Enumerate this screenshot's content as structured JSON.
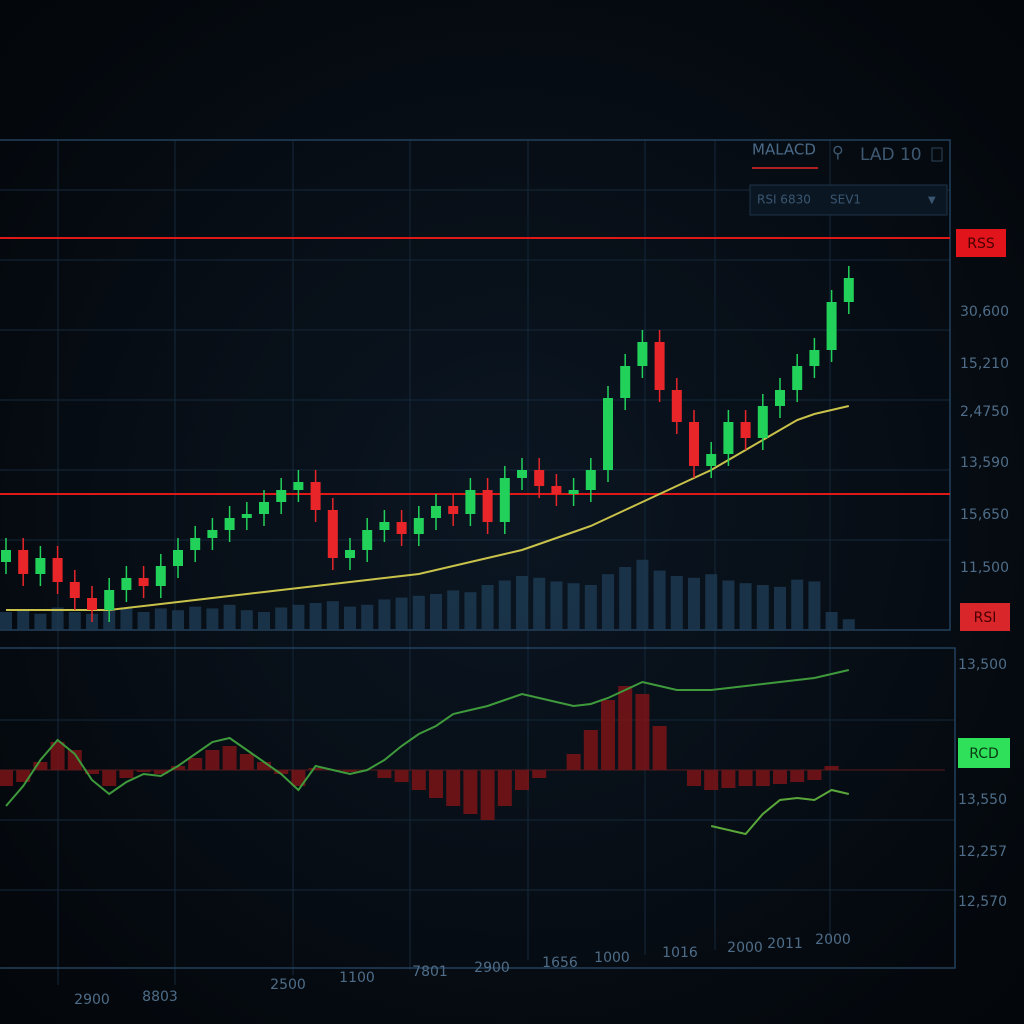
{
  "header": {
    "tabs": [
      "MALACD",
      "LAD 10"
    ],
    "dropdown": [
      "RSI 6830",
      "SEV1"
    ]
  },
  "chart_data": [
    {
      "type": "candlestick",
      "open": [
        17,
        20,
        14,
        18,
        12,
        8,
        5,
        10,
        13,
        11,
        16,
        20,
        23,
        25,
        28,
        29,
        32,
        35,
        37,
        30,
        18,
        20,
        25,
        27,
        24,
        28,
        31,
        29,
        35,
        27,
        38,
        40,
        36,
        34,
        35,
        40,
        58,
        66,
        72,
        60,
        52,
        41,
        44,
        52,
        48,
        56,
        60,
        66,
        70,
        82
      ],
      "high": [
        23,
        23,
        21,
        21,
        15,
        11,
        13,
        16,
        16,
        19,
        23,
        26,
        28,
        31,
        32,
        35,
        38,
        40,
        40,
        33,
        23,
        28,
        30,
        30,
        31,
        34,
        34,
        38,
        38,
        41,
        43,
        43,
        39,
        38,
        43,
        61,
        69,
        75,
        75,
        63,
        55,
        47,
        55,
        55,
        59,
        63,
        69,
        73,
        85,
        91
      ],
      "low": [
        14,
        11,
        11,
        9,
        5,
        2,
        2,
        7,
        8,
        8,
        13,
        17,
        20,
        22,
        25,
        26,
        29,
        32,
        27,
        15,
        15,
        17,
        22,
        21,
        21,
        25,
        26,
        26,
        24,
        24,
        35,
        33,
        31,
        31,
        32,
        37,
        55,
        63,
        57,
        49,
        38,
        38,
        41,
        45,
        45,
        53,
        57,
        63,
        67,
        79
      ],
      "close": [
        20,
        14,
        18,
        12,
        8,
        5,
        10,
        13,
        11,
        16,
        20,
        23,
        25,
        28,
        29,
        32,
        35,
        37,
        30,
        18,
        20,
        25,
        27,
        24,
        28,
        31,
        29,
        35,
        27,
        38,
        40,
        36,
        34,
        35,
        40,
        58,
        66,
        72,
        60,
        52,
        41,
        44,
        52,
        48,
        56,
        60,
        66,
        70,
        82,
        88
      ],
      "volume": [
        20,
        22,
        18,
        25,
        20,
        18,
        22,
        25,
        20,
        24,
        22,
        26,
        24,
        28,
        22,
        20,
        25,
        28,
        30,
        32,
        26,
        28,
        34,
        36,
        38,
        40,
        44,
        42,
        50,
        55,
        60,
        58,
        54,
        52,
        50,
        62,
        70,
        78,
        66,
        60,
        58,
        62,
        55,
        52,
        50,
        48,
        56,
        54,
        20,
        12
      ],
      "ma": [
        5,
        5,
        5,
        5,
        5,
        5,
        5,
        5.5,
        6,
        6.5,
        7,
        7.5,
        8,
        8.5,
        9,
        9.5,
        10,
        10.5,
        11,
        11.5,
        12,
        12.5,
        13,
        13.5,
        14,
        15,
        16,
        17,
        18,
        19,
        20,
        21.5,
        23,
        24.5,
        26,
        28,
        30,
        32,
        34,
        36,
        38,
        40,
        42.5,
        45,
        47.5,
        50,
        52.5,
        54,
        55,
        56
      ],
      "hlines": [
        98,
        34
      ],
      "ylim": [
        0,
        100
      ],
      "up_color": "#22d15a",
      "down_color": "#e8262a",
      "ma_color": "#c9c24a",
      "hline_color": "#e01818",
      "volume_color": "#1c3850",
      "y_labels": [
        "30,600",
        "15,210",
        "2,4750",
        "13,590",
        "15,650",
        "11,500"
      ],
      "tags": [
        "RSS",
        "RSI"
      ]
    },
    {
      "type": "macd",
      "histogram": [
        -8,
        -6,
        4,
        14,
        10,
        -2,
        -8,
        -4,
        -1,
        -2,
        2,
        6,
        10,
        12,
        8,
        4,
        -2,
        -8,
        1,
        0,
        -1,
        0,
        -4,
        -6,
        -10,
        -14,
        -18,
        -22,
        -25,
        -18,
        -10,
        -4,
        0,
        8,
        20,
        35,
        42,
        38,
        22,
        0,
        -8,
        -10,
        -9,
        -8,
        -8,
        -7,
        -6,
        -5,
        2,
        0
      ],
      "series": [
        {
          "color": "#3f9a3c",
          "values": [
            -18,
            -8,
            5,
            15,
            8,
            -5,
            -12,
            -6,
            -2,
            -3,
            2,
            8,
            14,
            16,
            10,
            4,
            -2,
            -10,
            2,
            0,
            -2,
            0,
            5,
            12,
            18,
            22,
            28,
            30,
            32,
            35,
            38,
            36,
            34,
            32,
            33,
            36,
            40,
            44,
            42,
            40,
            40,
            40,
            41,
            42,
            43,
            44,
            45,
            46,
            48,
            50
          ]
        },
        {
          "color": "#5aa83a",
          "values": [
            null,
            null,
            null,
            null,
            null,
            null,
            null,
            null,
            null,
            null,
            null,
            null,
            null,
            null,
            null,
            null,
            null,
            null,
            null,
            null,
            null,
            null,
            null,
            null,
            null,
            null,
            null,
            null,
            null,
            null,
            null,
            null,
            null,
            null,
            null,
            null,
            null,
            null,
            null,
            null,
            null,
            -28,
            -30,
            -32,
            -22,
            -15,
            -14,
            -15,
            -10,
            -12
          ]
        }
      ],
      "ylim": [
        -50,
        50
      ],
      "hist_color": "#7a1418",
      "y_labels": [
        "13,500",
        "13,550",
        "12,257",
        "12,570"
      ],
      "tags": [
        "RCD"
      ],
      "x_labels": [
        "2900",
        "8803",
        "2500",
        "1100",
        "7801",
        "2900",
        "1656",
        "1000",
        "1016",
        "2000",
        "2011",
        "2000"
      ]
    }
  ]
}
